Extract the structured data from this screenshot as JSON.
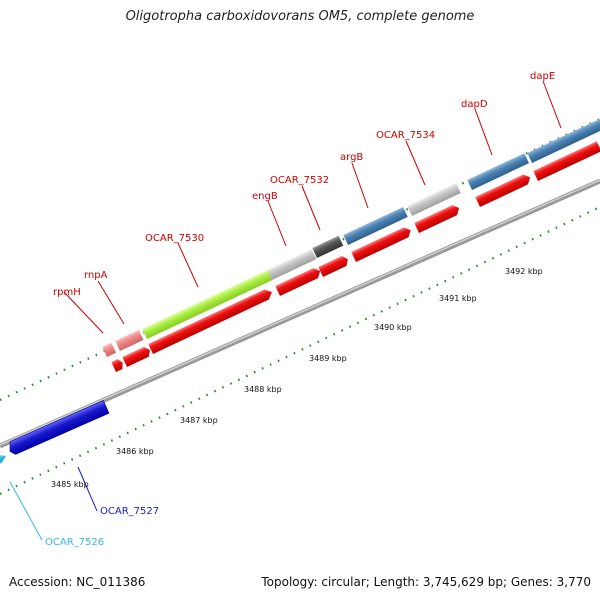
{
  "title": "Oligotropha carboxidovorans OM5, complete genome",
  "footer": {
    "accession": "Accession: NC_011386",
    "summary": "Topology: circular; Length: 3,745,629 bp; Genes: 3,770"
  },
  "colors": {
    "backbone": "#8c8c8c",
    "gene_red": "#ee1111",
    "label_red": "#cc0000",
    "tick_green": "#2e8b2e",
    "blue": "#1a1acc",
    "cyan": "#33bbdd",
    "steel": "#4a82b4",
    "lime": "#aaee44",
    "pink": "#ee8888",
    "gray_light": "#c4c4c4",
    "gray_dark": "#555555"
  },
  "genes": [
    {
      "label": "OCAR_7526",
      "color": "cyan"
    },
    {
      "label": "OCAR_7527",
      "color": "blue"
    },
    {
      "label": "rpmH",
      "color": "pink"
    },
    {
      "label": "rnpA",
      "color": "pink"
    },
    {
      "label": "OCAR_7530",
      "color": "lime"
    },
    {
      "label": "engB",
      "color": "gray_light"
    },
    {
      "label": "OCAR_7532",
      "color": "gray_dark"
    },
    {
      "label": "argB",
      "color": "steel"
    },
    {
      "label": "OCAR_7534",
      "color": "gray_light"
    },
    {
      "label": "dapD",
      "color": "steel"
    },
    {
      "label": "dapE",
      "color": "steel"
    }
  ],
  "kbp_labels": [
    "3485 kbp",
    "3486 kbp",
    "3487 kbp",
    "3488 kbp",
    "3489 kbp",
    "3490 kbp",
    "3491 kbp",
    "3492 kbp"
  ]
}
